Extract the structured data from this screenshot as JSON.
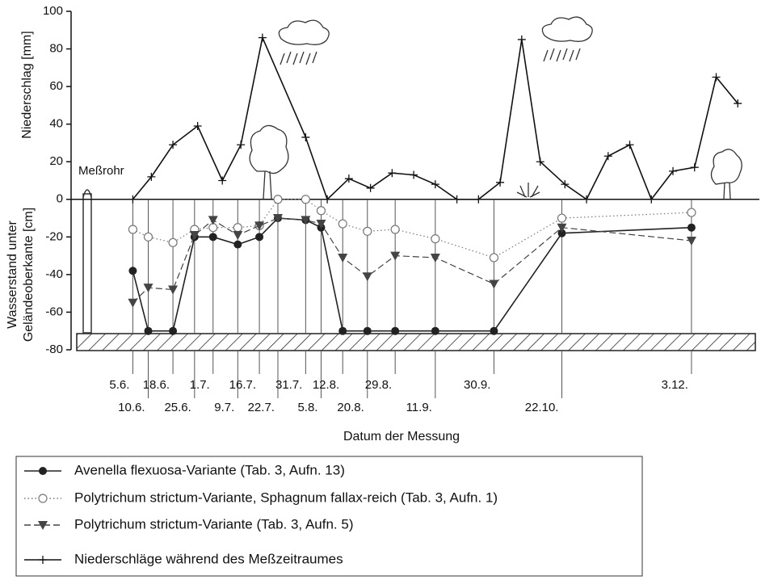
{
  "chart_data": {
    "type": "line",
    "y_label_top": "Niederschlag [mm]",
    "y_label_bottom": [
      "Wasserstand unter",
      "Geländeoberkante [cm]"
    ],
    "x_label": "Datum der Messung",
    "annotation": "Meßrohr",
    "xlim": [
      136,
      359
    ],
    "xticks": [
      {
        "value": 156,
        "label": "5.6."
      },
      {
        "value": 161,
        "label": "10.6."
      },
      {
        "value": 169,
        "label": "18.6."
      },
      {
        "value": 176,
        "label": "25.6."
      },
      {
        "value": 182,
        "label": "1.7."
      },
      {
        "value": 190,
        "label": "9.7."
      },
      {
        "value": 197,
        "label": "16.7."
      },
      {
        "value": 203,
        "label": "22.7."
      },
      {
        "value": 212,
        "label": "31.7."
      },
      {
        "value": 217,
        "label": "5.8."
      },
      {
        "value": 224,
        "label": "12.8."
      },
      {
        "value": 232,
        "label": "20.8."
      },
      {
        "value": 241,
        "label": "29.8."
      },
      {
        "value": 254,
        "label": "11.9."
      },
      {
        "value": 273,
        "label": "30.9."
      },
      {
        "value": 295,
        "label": "22.10."
      },
      {
        "value": 337,
        "label": "3.12."
      }
    ],
    "ylim": [
      -80,
      100
    ],
    "yticks": [
      -80,
      -60,
      -40,
      -20,
      0,
      20,
      40,
      60,
      80,
      100
    ],
    "series": [
      {
        "name": "Avenella flexuosa-Variante (Tab. 3,  Aufn. 13)",
        "color": "#222222",
        "marker": "filled-circle",
        "dash": "solid",
        "x": [
          156,
          161,
          169,
          176,
          182,
          190,
          197,
          203,
          212,
          217,
          224,
          232,
          241,
          254,
          273,
          295,
          337
        ],
        "values": [
          -38,
          -70,
          -70,
          -20,
          -20,
          -24,
          -20,
          -10,
          -11,
          -15,
          -70,
          -70,
          -70,
          -70,
          -70,
          -18,
          -15
        ]
      },
      {
        "name": "Polytrichum strictum-Variante, Sphagnum fallax-reich (Tab. 3, Aufn. 1)",
        "color": "#777777",
        "marker": "open-circle",
        "dash": "dotted",
        "x": [
          156,
          161,
          169,
          176,
          182,
          190,
          197,
          203,
          212,
          217,
          224,
          232,
          241,
          254,
          273,
          295,
          337
        ],
        "values": [
          -16,
          -20,
          -23,
          -16,
          -15,
          -15,
          -14,
          0,
          0,
          -6,
          -13,
          -17,
          -16,
          -21,
          -31,
          -10,
          -7
        ]
      },
      {
        "name": "Polytrichum strictum-Variante (Tab. 3, Aufn. 5)",
        "color": "#444444",
        "marker": "triangle",
        "dash": "dashed",
        "x": [
          156,
          161,
          169,
          176,
          182,
          190,
          197,
          203,
          212,
          217,
          224,
          232,
          241,
          254,
          273,
          295,
          337
        ],
        "values": [
          -55,
          -47,
          -48,
          -19,
          -11,
          -19,
          -14,
          -10,
          -11,
          -13,
          -31,
          -41,
          -30,
          -31,
          -45,
          -15,
          -22
        ]
      },
      {
        "name": "Niederschläge während des Meßzeitraumes",
        "color": "#111111",
        "marker": "plus",
        "dash": "solid",
        "x": [
          156,
          162,
          169,
          177,
          185,
          191,
          198,
          212,
          219,
          226,
          233,
          240,
          247,
          254,
          261,
          268,
          275,
          282,
          288,
          296,
          303,
          310,
          317,
          324,
          331,
          338,
          345,
          352
        ],
        "values": [
          0,
          12,
          29,
          39,
          10,
          29,
          86,
          33,
          0,
          11,
          6,
          14,
          13,
          8,
          0,
          0,
          9,
          85,
          20,
          8,
          0,
          23,
          29,
          0,
          15,
          17,
          65,
          51
        ]
      }
    ]
  }
}
